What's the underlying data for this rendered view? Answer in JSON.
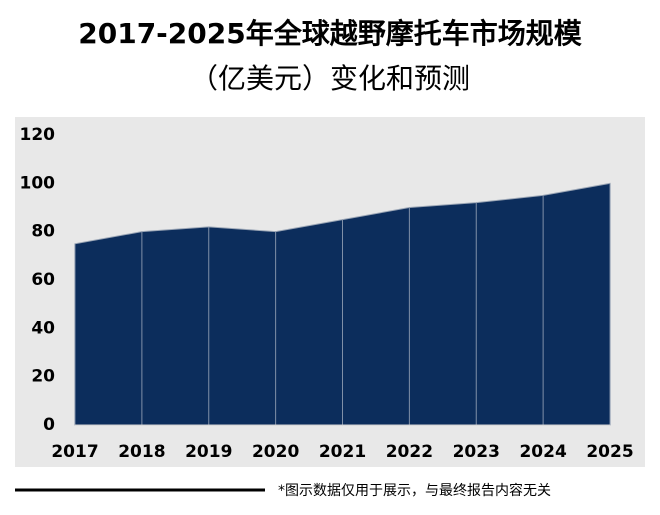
{
  "chart_data": {
    "type": "area",
    "title": [
      "2017-2025年全球越野摩托车市场规模",
      "（亿美元）变化和预测"
    ],
    "categories": [
      "2017",
      "2018",
      "2019",
      "2020",
      "2021",
      "2022",
      "2023",
      "2024",
      "2025"
    ],
    "values": [
      75,
      80,
      82,
      80,
      85,
      90,
      92,
      95,
      100
    ],
    "color": "#0c2d5c",
    "ylim": [
      0,
      120
    ],
    "yticks": [
      0,
      20,
      40,
      60,
      80,
      100,
      120
    ],
    "note": "*图示数据仅用于展示，与最终报告内容无关"
  }
}
